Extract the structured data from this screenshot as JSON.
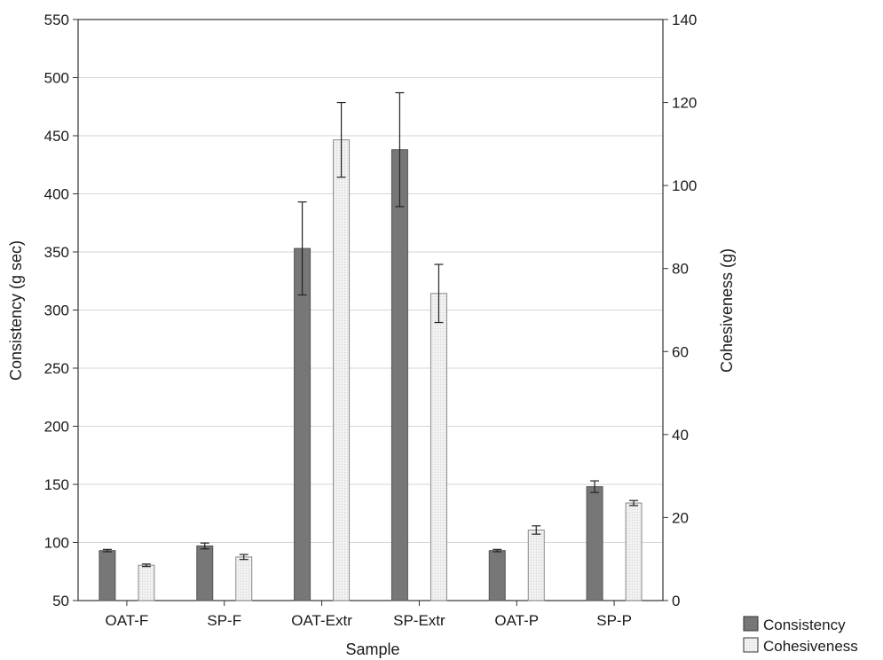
{
  "chart_data": {
    "type": "bar",
    "xlabel": "Sample",
    "ylabel_left": "Consistency (g sec)",
    "ylabel_right": "Cohesiveness (g)",
    "categories": [
      "OAT-F",
      "SP-F",
      "OAT-Extr",
      "SP-Extr",
      "OAT-P",
      "SP-P"
    ],
    "ylim_left": [
      50,
      550
    ],
    "yticks_left": [
      50,
      100,
      150,
      200,
      250,
      300,
      350,
      400,
      450,
      500,
      550
    ],
    "ylim_right": [
      0,
      140
    ],
    "yticks_right": [
      0,
      20,
      40,
      60,
      80,
      100,
      120,
      140
    ],
    "grid": true,
    "legend_position": "bottom-right",
    "series": [
      {
        "name": "Consistency",
        "axis": "left",
        "color": "#777777",
        "values": [
          93,
          97,
          353,
          438,
          93,
          148
        ],
        "errors": [
          1,
          2.5,
          40,
          49,
          1,
          5
        ]
      },
      {
        "name": "Cohesiveness",
        "axis": "right",
        "color": "#ececec",
        "values": [
          8.5,
          10.5,
          111,
          74,
          17,
          23.5
        ],
        "errors": [
          0.3,
          0.6,
          9,
          7,
          1,
          0.6
        ]
      }
    ]
  }
}
